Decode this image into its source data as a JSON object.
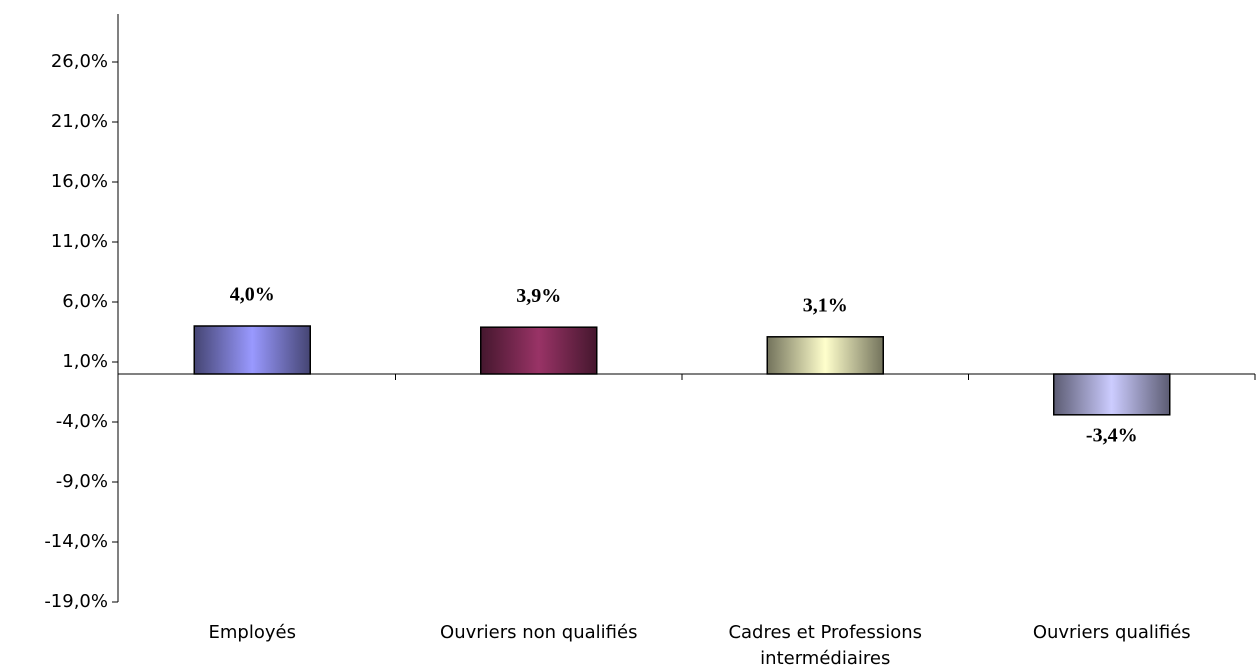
{
  "chart_data": {
    "type": "bar",
    "categories": [
      "Employés",
      "Ouvriers non qualifiés",
      "Cadres et Professions intermédiaires",
      "Ouvriers qualifiés"
    ],
    "values": [
      4.0,
      3.9,
      3.1,
      -3.4
    ],
    "value_labels": [
      "4,0%",
      "3,9%",
      "3,1%",
      "-3,4%"
    ],
    "colors": [
      "#9999ff",
      "#993366",
      "#ffffcc",
      "#ccccff"
    ],
    "ylim": [
      -19,
      30
    ],
    "yticks": [
      {
        "value": -19,
        "label": "-19,0%"
      },
      {
        "value": -14,
        "label": "-14,0%"
      },
      {
        "value": -9,
        "label": "-9,0%"
      },
      {
        "value": -4,
        "label": "-4,0%"
      },
      {
        "value": 1,
        "label": "1,0%"
      },
      {
        "value": 6,
        "label": "6,0%"
      },
      {
        "value": 11,
        "label": "11,0%"
      },
      {
        "value": 16,
        "label": "16,0%"
      },
      {
        "value": 21,
        "label": "21,0%"
      },
      {
        "value": 26,
        "label": "26,0%"
      }
    ],
    "grid": false
  }
}
